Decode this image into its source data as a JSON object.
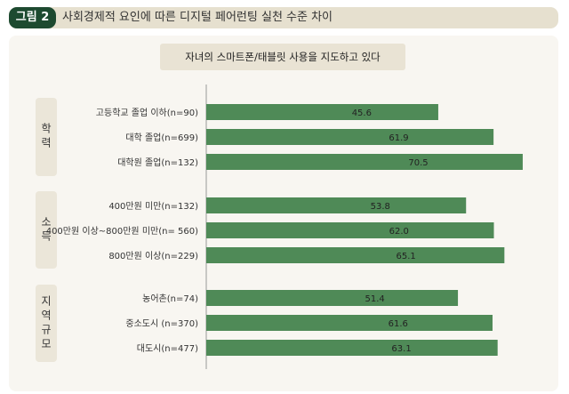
{
  "header": {
    "figure_label": "그림 2",
    "title": "사회경제적 요인에 따른 디지털 페어런팅 실천 수준 차이"
  },
  "chart_data": {
    "type": "bar",
    "orientation": "horizontal",
    "title": "자녀의 스마트폰/태블릿 사용을 지도하고 있다",
    "groups": [
      {
        "name": "학력",
        "categories": [
          "고등학교 졸업 이하(n=90)",
          "대학 졸업(n=699)",
          "대학원 졸업(n=132)"
        ],
        "values": [
          45.6,
          61.9,
          70.5
        ]
      },
      {
        "name": "소득",
        "categories": [
          "400만원 미만(n=132)",
          "400만원 이상~800만원 미만(n= 560)",
          "800만원 이상(n=229)"
        ],
        "values": [
          53.8,
          62.0,
          65.1
        ]
      },
      {
        "name": "지역규모",
        "categories": [
          "농어촌(n=74)",
          "중소도시 (n=370)",
          "대도시(n=477)"
        ],
        "values": [
          51.4,
          61.6,
          63.1
        ]
      }
    ],
    "bar_color": "#4f8a57",
    "grid": false
  }
}
